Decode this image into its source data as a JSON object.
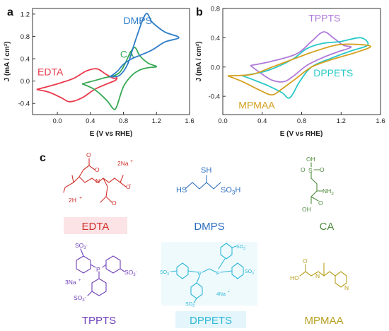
{
  "panels": {
    "a": "a",
    "b": "b",
    "c": "c"
  },
  "chart_data": [
    {
      "type": "line",
      "panel": "a",
      "xlabel": "E (V vs RHE)",
      "ylabel": "J (mA / cm²)",
      "xlim": [
        -0.3,
        1.6
      ],
      "ylim": [
        -0.6,
        1.3
      ],
      "xticks": [
        "0.0",
        "0.4",
        "0.8",
        "1.2",
        "1.6"
      ],
      "yticks": [
        "-0.4",
        "0.0",
        "0.4",
        "0.8",
        "1.2"
      ],
      "xtick_values": [
        0.0,
        0.4,
        0.8,
        1.2,
        1.6
      ],
      "ytick_values": [
        -0.4,
        0.0,
        0.4,
        0.8,
        1.2
      ],
      "series": [
        {
          "name": "EDTA",
          "color": "#e8394a",
          "label_at": [
            -0.24,
            0.1
          ],
          "points": [
            [
              -0.25,
              -0.15
            ],
            [
              0.0,
              -0.05
            ],
            [
              0.2,
              0.05
            ],
            [
              0.35,
              0.18
            ],
            [
              0.48,
              0.22
            ],
            [
              0.58,
              0.13
            ],
            [
              0.68,
              0.05
            ],
            [
              0.72,
              0.06
            ],
            [
              0.7,
              0.01
            ],
            [
              0.6,
              -0.05
            ],
            [
              0.45,
              -0.15
            ],
            [
              0.3,
              -0.3
            ],
            [
              0.15,
              -0.37
            ],
            [
              0.05,
              -0.3
            ],
            [
              -0.1,
              -0.2
            ],
            [
              -0.25,
              -0.15
            ]
          ]
        },
        {
          "name": "CA",
          "color": "#36a853",
          "label_at": [
            0.76,
            0.42
          ],
          "points": [
            [
              0.3,
              -0.05
            ],
            [
              0.55,
              0.05
            ],
            [
              0.75,
              0.15
            ],
            [
              0.88,
              0.5
            ],
            [
              0.94,
              0.6
            ],
            [
              1.0,
              0.45
            ],
            [
              1.1,
              0.32
            ],
            [
              1.2,
              0.26
            ],
            [
              1.1,
              0.24
            ],
            [
              1.0,
              0.2
            ],
            [
              0.9,
              0.1
            ],
            [
              0.8,
              -0.1
            ],
            [
              0.72,
              -0.45
            ],
            [
              0.68,
              -0.5
            ],
            [
              0.6,
              -0.35
            ],
            [
              0.45,
              -0.15
            ],
            [
              0.3,
              -0.05
            ]
          ]
        },
        {
          "name": "DMPS",
          "color": "#2e7dc8",
          "label_at": [
            0.8,
            1.02
          ],
          "points": [
            [
              0.63,
              0.08
            ],
            [
              0.75,
              0.1
            ],
            [
              0.85,
              0.3
            ],
            [
              0.95,
              0.75
            ],
            [
              1.07,
              1.2
            ],
            [
              1.15,
              1.05
            ],
            [
              1.3,
              0.88
            ],
            [
              1.47,
              0.78
            ],
            [
              1.3,
              0.7
            ],
            [
              1.15,
              0.56
            ],
            [
              1.0,
              0.46
            ],
            [
              0.9,
              0.4
            ],
            [
              0.8,
              0.3
            ],
            [
              0.73,
              0.18
            ],
            [
              0.66,
              0.1
            ],
            [
              0.63,
              0.08
            ]
          ]
        }
      ]
    },
    {
      "type": "line",
      "panel": "b",
      "xlabel": "E (V vs RHE)",
      "ylabel": "J (mA / cm²)",
      "xlim": [
        0.0,
        1.6
      ],
      "ylim": [
        -0.65,
        0.8
      ],
      "xticks": [
        "0.0",
        "0.4",
        "0.8",
        "1.2",
        "1.6"
      ],
      "yticks": [
        "-0.4",
        "0.0",
        "0.4",
        "0.8"
      ],
      "xtick_values": [
        0.0,
        0.4,
        0.8,
        1.2,
        1.6
      ],
      "ytick_values": [
        -0.4,
        0.0,
        0.4,
        0.8
      ],
      "series": [
        {
          "name": "TPPTS",
          "color": "#b07ad8",
          "label_at": [
            0.87,
            0.62
          ],
          "points": [
            [
              0.28,
              0.02
            ],
            [
              0.5,
              0.08
            ],
            [
              0.75,
              0.18
            ],
            [
              0.9,
              0.35
            ],
            [
              1.02,
              0.48
            ],
            [
              1.12,
              0.4
            ],
            [
              1.22,
              0.3
            ],
            [
              1.3,
              0.27
            ],
            [
              1.15,
              0.2
            ],
            [
              1.0,
              0.12
            ],
            [
              0.85,
              0.02
            ],
            [
              0.72,
              -0.12
            ],
            [
              0.62,
              -0.2
            ],
            [
              0.5,
              -0.18
            ],
            [
              0.38,
              -0.08
            ],
            [
              0.28,
              0.02
            ]
          ]
        },
        {
          "name": "DPPETS",
          "color": "#28c8c8",
          "label_at": [
            0.92,
            -0.13
          ],
          "points": [
            [
              0.2,
              -0.12
            ],
            [
              0.45,
              -0.05
            ],
            [
              0.7,
              0.1
            ],
            [
              0.85,
              0.25
            ],
            [
              1.0,
              0.32
            ],
            [
              1.2,
              0.35
            ],
            [
              1.4,
              0.4
            ],
            [
              1.47,
              0.3
            ],
            [
              1.3,
              0.22
            ],
            [
              1.1,
              0.12
            ],
            [
              0.9,
              0.0
            ],
            [
              0.78,
              -0.2
            ],
            [
              0.68,
              -0.42
            ],
            [
              0.6,
              -0.35
            ],
            [
              0.45,
              -0.25
            ],
            [
              0.3,
              -0.17
            ],
            [
              0.2,
              -0.12
            ]
          ]
        },
        {
          "name": "MPMAA",
          "color": "#d4a020",
          "label_at": [
            0.16,
            -0.57
          ],
          "points": [
            [
              0.05,
              -0.12
            ],
            [
              0.3,
              -0.1
            ],
            [
              0.5,
              0.0
            ],
            [
              0.7,
              0.1
            ],
            [
              0.9,
              0.2
            ],
            [
              1.15,
              0.3
            ],
            [
              1.35,
              0.31
            ],
            [
              1.5,
              0.28
            ],
            [
              1.35,
              0.2
            ],
            [
              1.1,
              0.1
            ],
            [
              0.9,
              0.0
            ],
            [
              0.75,
              -0.15
            ],
            [
              0.6,
              -0.3
            ],
            [
              0.5,
              -0.38
            ],
            [
              0.38,
              -0.32
            ],
            [
              0.2,
              -0.2
            ],
            [
              0.05,
              -0.12
            ]
          ]
        }
      ]
    }
  ],
  "molecules": {
    "edta": {
      "name": "EDTA",
      "color": "#d0302a",
      "bg": "#fbe3e6",
      "atoms": {
        "n": "N",
        "o": "O",
        "om": "O",
        "om2": "O",
        "om3": "O",
        "ion": "2Na",
        "plus1": "+",
        "h": "2H",
        "plus2": "+",
        "minus": "-"
      }
    },
    "dmps": {
      "name": "DMPS",
      "color": "#2e6fc0",
      "sh_top": "SH",
      "hs": "HS",
      "so3h": "SO",
      "sub3": "3",
      "h": "H"
    },
    "ca": {
      "name": "CA",
      "color": "#4e8a3e",
      "oh_top": "OH",
      "s": "S",
      "o1": "O",
      "o2": "O",
      "nh2": "NH",
      "sub2": "2",
      "oh_bot": "OH",
      "o3": "O"
    },
    "tppts": {
      "name": "TPPTS",
      "color": "#7040b8",
      "p": "P",
      "so3": "SO",
      "sub3": "3",
      "minus": "-",
      "ion": "3Na",
      "plus": "+"
    },
    "dppets": {
      "name": "DPPETS",
      "color": "#30b8d8",
      "bg": "#e4f6fb",
      "p": "P",
      "so3": "SO",
      "sub3": "3",
      "minus": "-",
      "ion": "4Na",
      "plus": "+"
    },
    "mpmaa": {
      "name": "MPMAA",
      "color": "#b8a020",
      "o": "O",
      "ho": "HO",
      "n": "N",
      "npy": "N"
    }
  }
}
